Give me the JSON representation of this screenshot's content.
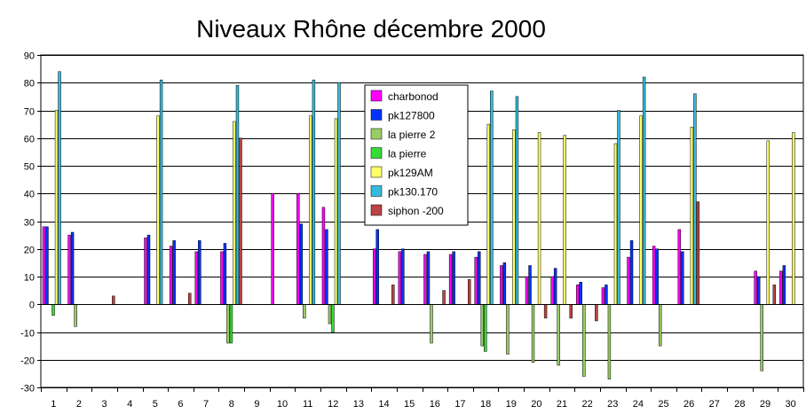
{
  "chart_data": {
    "type": "bar",
    "title": "Niveaux Rhône décembre 2000",
    "xlabel": "",
    "ylabel": "",
    "ylim": [
      -30,
      90
    ],
    "yticks": [
      -30,
      -20,
      -10,
      0,
      10,
      20,
      30,
      40,
      50,
      60,
      70,
      80,
      90
    ],
    "grid": true,
    "legend_position": "inside-top-center",
    "categories": [
      "1",
      "2",
      "3",
      "4",
      "5",
      "6",
      "7",
      "8",
      "9",
      "10",
      "11",
      "12",
      "13",
      "14",
      "15",
      "16",
      "17",
      "18",
      "19",
      "20",
      "21",
      "22",
      "23",
      "24",
      "25",
      "26",
      "27",
      "28",
      "29",
      "30"
    ],
    "series": [
      {
        "name": "charbonod",
        "color": "#FF00FF",
        "values": [
          28,
          25,
          null,
          null,
          24,
          21,
          19,
          19,
          null,
          40,
          40,
          35,
          null,
          20,
          19,
          18,
          18,
          17,
          14,
          10,
          10,
          7,
          6,
          17,
          21,
          27,
          null,
          null,
          12,
          12
        ]
      },
      {
        "name": "pk127800",
        "color": "#0033FF",
        "values": [
          28,
          26,
          null,
          null,
          25,
          23,
          23,
          22,
          null,
          null,
          29,
          27,
          null,
          27,
          20,
          19,
          19,
          19,
          15,
          14,
          13,
          8,
          7,
          23,
          20,
          19,
          null,
          null,
          10,
          14
        ]
      },
      {
        "name": "la pierre 2",
        "color": "#99CC66",
        "values": [
          null,
          -8,
          null,
          null,
          null,
          null,
          null,
          -14,
          null,
          null,
          -5,
          -7,
          null,
          null,
          null,
          -14,
          null,
          -15,
          -18,
          -21,
          -22,
          -26,
          -27,
          null,
          -15,
          null,
          null,
          null,
          -24,
          null
        ]
      },
      {
        "name": "la pierre",
        "color": "#33DD33",
        "values": [
          -4,
          null,
          null,
          null,
          null,
          null,
          null,
          -14,
          null,
          null,
          null,
          -10,
          null,
          null,
          null,
          null,
          null,
          -17,
          null,
          null,
          null,
          null,
          null,
          null,
          null,
          null,
          null,
          null,
          null,
          null
        ]
      },
      {
        "name": "pk129AM",
        "color": "#FFFF66",
        "values": [
          70,
          null,
          null,
          null,
          68,
          null,
          null,
          66,
          null,
          null,
          68,
          67,
          null,
          null,
          null,
          null,
          null,
          65,
          63,
          62,
          61,
          null,
          58,
          68,
          null,
          64,
          null,
          null,
          59,
          62
        ]
      },
      {
        "name": "pk130.170",
        "color": "#33BBDD",
        "values": [
          84,
          null,
          null,
          null,
          81,
          null,
          null,
          79,
          null,
          null,
          81,
          80,
          null,
          null,
          null,
          null,
          null,
          77,
          75,
          null,
          null,
          null,
          70,
          82,
          null,
          76,
          null,
          null,
          null,
          null
        ]
      },
      {
        "name": "siphon -200",
        "color": "#BB4444",
        "values": [
          null,
          null,
          3,
          null,
          null,
          4,
          null,
          60,
          null,
          null,
          null,
          null,
          null,
          7,
          null,
          5,
          9,
          null,
          null,
          -5,
          -5,
          -6,
          null,
          null,
          null,
          37,
          null,
          null,
          7,
          null
        ]
      }
    ]
  }
}
